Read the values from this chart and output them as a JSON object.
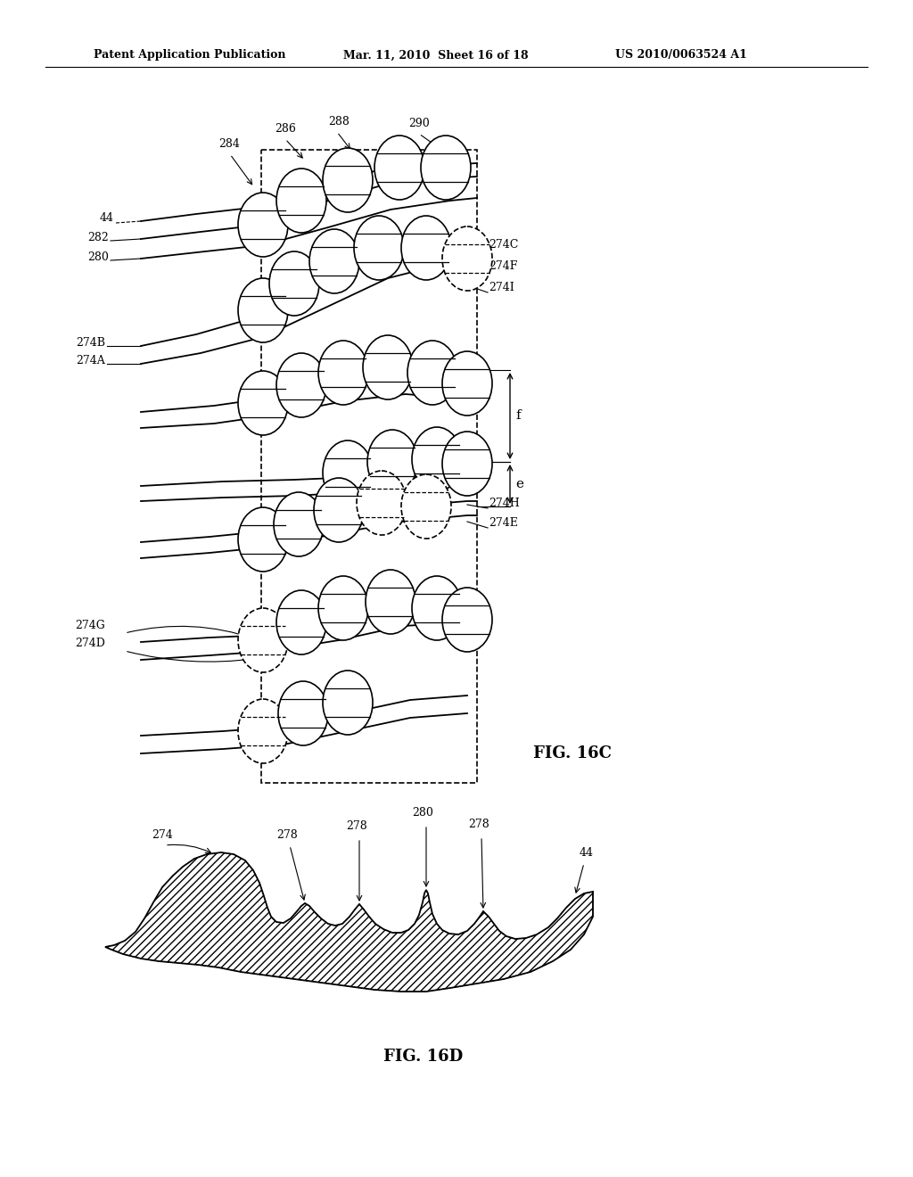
{
  "bg_color": "#ffffff",
  "header_text": "Patent Application Publication",
  "header_date": "Mar. 11, 2010  Sheet 16 of 18",
  "header_patent": "US 2010/0063524 A1",
  "fig16c_label": "FIG. 16C",
  "fig16d_label": "FIG. 16D"
}
